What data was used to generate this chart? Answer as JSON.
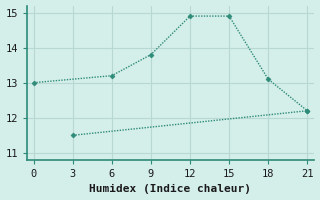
{
  "line1_x": [
    0,
    6,
    9,
    12,
    15,
    18,
    21
  ],
  "line1_y": [
    13.0,
    13.2,
    13.8,
    14.9,
    14.9,
    13.1,
    12.2
  ],
  "line2_x": [
    3,
    21
  ],
  "line2_y": [
    11.5,
    12.2
  ],
  "line_color": "#2d8b78",
  "bg_color": "#d4eeea",
  "grid_color": "#b8d8d4",
  "spine_color": "#2d8b78",
  "xlabel": "Humidex (Indice chaleur)",
  "xlim": [
    -0.5,
    21.5
  ],
  "ylim": [
    10.8,
    15.2
  ],
  "xticks": [
    0,
    3,
    6,
    9,
    12,
    15,
    18,
    21
  ],
  "yticks": [
    11,
    12,
    13,
    14,
    15
  ],
  "marker": "D",
  "markersize": 2.5,
  "linewidth": 1.0,
  "xlabel_fontsize": 8,
  "tick_fontsize": 7.5
}
